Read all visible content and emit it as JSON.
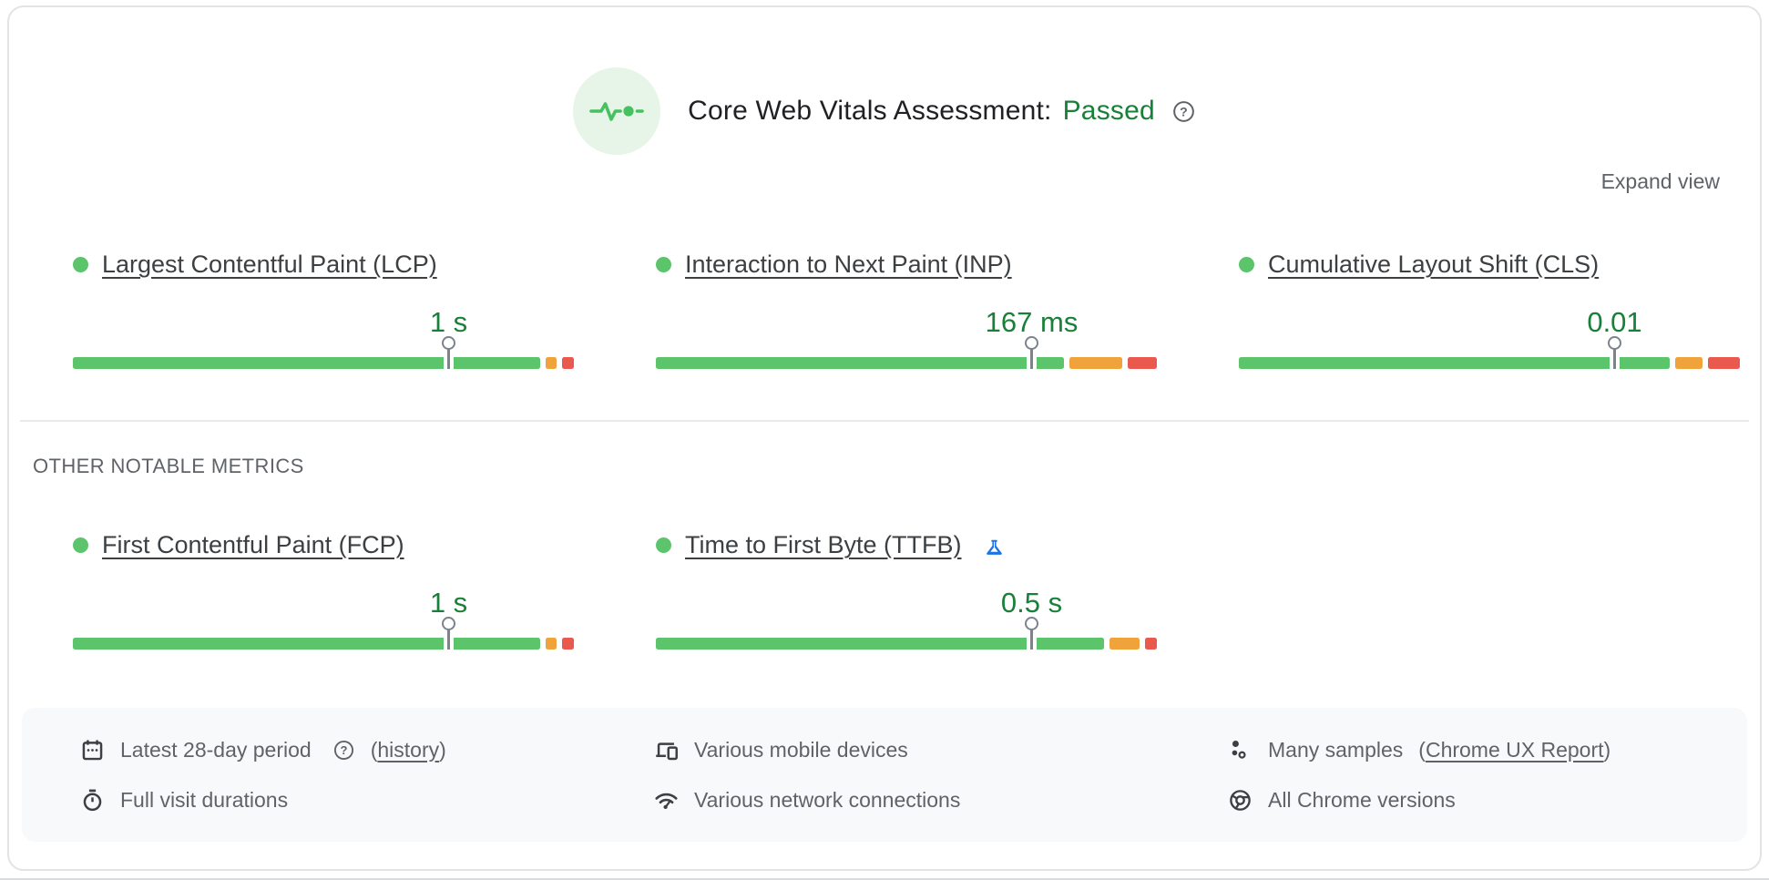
{
  "icons": {
    "help_glyph": "?"
  },
  "colors": {
    "good": "#5cc46a",
    "needs_improvement": "#f0a33b",
    "poor": "#e9594d",
    "value_green": "#188038",
    "passed_green": "#188038",
    "secondary_text": "#5f6368",
    "footer_bg": "#f8f9fa",
    "flask_blue": "#1a73e8"
  },
  "header": {
    "title": "Core Web Vitals Assessment:",
    "status": "Passed",
    "expand_label": "Expand view"
  },
  "sections": {
    "other_metrics_label": "OTHER NOTABLE METRICS"
  },
  "metrics": {
    "core": [
      {
        "id": "lcp",
        "label": "Largest Contentful Paint (LCP)",
        "value": "1 s",
        "p75_percent": 75,
        "distribution": {
          "good": 94.4,
          "needs_improvement": 2.2,
          "poor": 2.4
        }
      },
      {
        "id": "inp",
        "label": "Interaction to Next Paint (INP)",
        "value": "167 ms",
        "p75_percent": 75,
        "distribution": {
          "good": 82.4,
          "needs_improvement": 10.7,
          "poor": 5.9
        }
      },
      {
        "id": "cls",
        "label": "Cumulative Layout Shift (CLS)",
        "value": "0.01",
        "p75_percent": 75,
        "distribution": {
          "good": 86.4,
          "needs_improvement": 5.5,
          "poor": 6.4
        }
      }
    ],
    "other": [
      {
        "id": "fcp",
        "label": "First Contentful Paint (FCP)",
        "value": "1 s",
        "p75_percent": 75,
        "distribution": {
          "good": 94.4,
          "needs_improvement": 2.2,
          "poor": 2.4
        }
      },
      {
        "id": "ttfb",
        "label": "Time to First Byte (TTFB)",
        "value": "0.5 s",
        "experimental": true,
        "p75_percent": 75,
        "distribution": {
          "good": 90.0,
          "needs_improvement": 6.0,
          "poor": 2.4
        }
      }
    ]
  },
  "footer": {
    "period": {
      "text": "Latest 28-day period",
      "paren_open": "(",
      "link": "history",
      "paren_close": ")"
    },
    "durations": "Full visit durations",
    "devices": "Various mobile devices",
    "network": "Various network connections",
    "samples": {
      "text": "Many samples",
      "paren_open": "(",
      "link": "Chrome UX Report",
      "paren_close": ")"
    },
    "chrome": "All Chrome versions"
  }
}
